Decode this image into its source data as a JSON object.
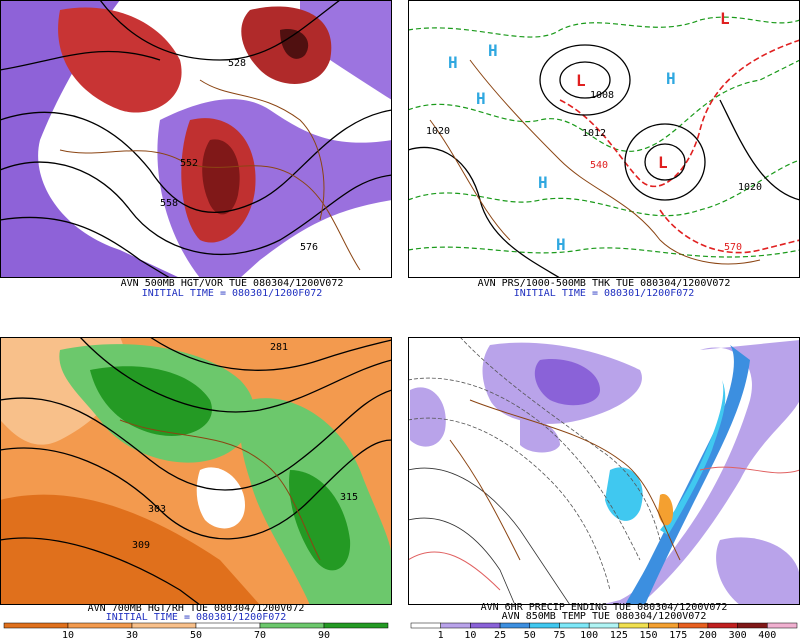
{
  "panels": [
    {
      "captions": [
        "AVN 500MB HGT/VOR TUE 080304/1200V072",
        "INITIAL TIME = 080301/1200F072"
      ],
      "labels": [
        "528",
        "552",
        "558",
        "576"
      ]
    },
    {
      "captions": [
        "AVN PRS/1000-500MB THK TUE 080304/1200V072",
        "INITIAL TIME = 080301/1200F072"
      ],
      "labels": [
        "H",
        "H",
        "H",
        "H",
        "H",
        "H",
        "L",
        "L",
        "L",
        "1020",
        "1020",
        "1008",
        "1012",
        "540",
        "570"
      ]
    },
    {
      "captions": [
        "AVN 700MB HGT/RH TUE 080304/1200V072",
        "INITIAL TIME = 080301/1200F072"
      ],
      "labels": [
        "281",
        "303",
        "309",
        "315"
      ],
      "colorbar": {
        "labels": [
          10,
          30,
          50,
          70,
          90
        ],
        "colors": [
          "#e0701c",
          "#f39a4e",
          "#f8c08a",
          "#ffffff",
          "#6cc86c",
          "#249a24"
        ]
      }
    },
    {
      "captions": [
        "AVN 6HR PRECIP ENDING TUE 080304/1200V072",
        "AVN 850MB TEMP TUE 080304/1200V072"
      ],
      "labels": [],
      "colorbar": {
        "labels": [
          1,
          10,
          25,
          50,
          75,
          100,
          125,
          150,
          175,
          200,
          300,
          400
        ],
        "colors": [
          "#ffffff",
          "#b9a3ea",
          "#8a62d8",
          "#3c8fe0",
          "#40c8f0",
          "#7ee8f8",
          "#b0f4f4",
          "#f0e050",
          "#f4a030",
          "#e86020",
          "#c02020",
          "#801818",
          "#f0b0d0"
        ]
      }
    }
  ]
}
